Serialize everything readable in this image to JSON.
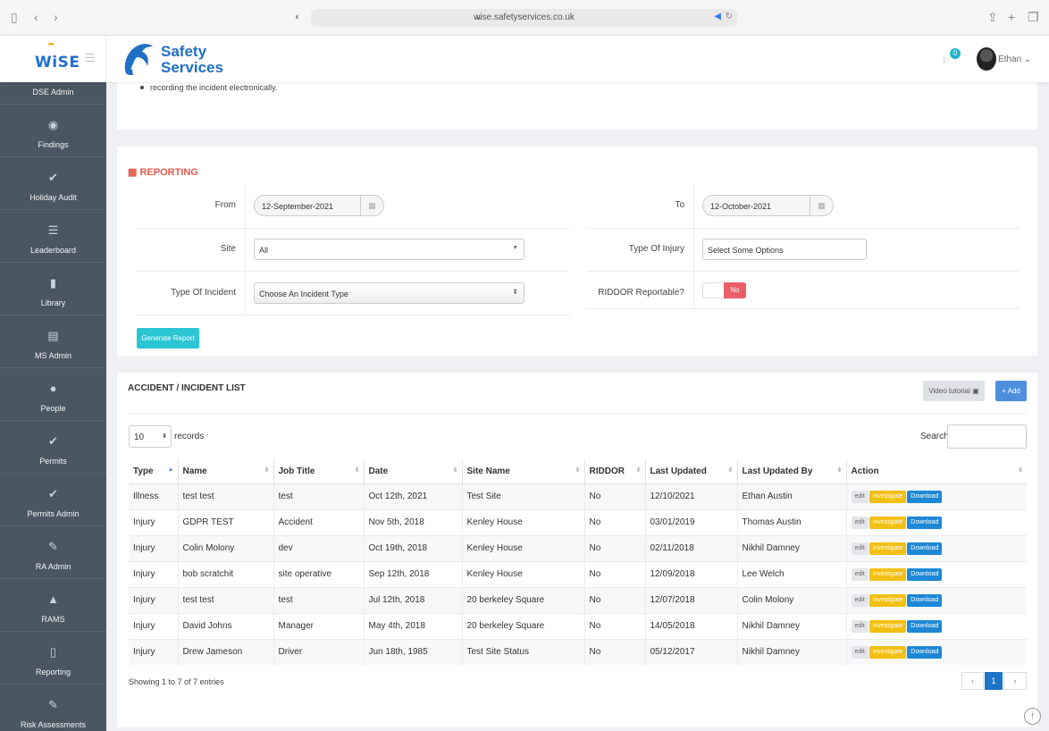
{
  "browser": {
    "url": "wise.safetyservices.co.uk",
    "colors": {
      "bar": "#f6f6f6",
      "url_box": "#e9e9ea"
    }
  },
  "header": {
    "wise_logo": "WiSE",
    "brand_line1": "Safety",
    "brand_line2": "Services",
    "notification_count": "0",
    "user_name": "Ethan ⌄"
  },
  "sidebar": {
    "bg_color": "#4a5662",
    "items": [
      {
        "label": "DSE Admin",
        "icon": "monitor-icon",
        "glyph": ""
      },
      {
        "label": "Findings",
        "icon": "eye-icon",
        "glyph": "◉"
      },
      {
        "label": "Holiday Audit",
        "icon": "check-icon",
        "glyph": "✔"
      },
      {
        "label": "Leaderboard",
        "icon": "list-icon",
        "glyph": "☰"
      },
      {
        "label": "Library",
        "icon": "book-icon",
        "glyph": "▮"
      },
      {
        "label": "MS Admin",
        "icon": "table-icon",
        "glyph": "▤"
      },
      {
        "label": "People",
        "icon": "users-icon",
        "glyph": "●"
      },
      {
        "label": "Permits",
        "icon": "check-icon",
        "glyph": "✔"
      },
      {
        "label": "Permits Admin",
        "icon": "check-icon",
        "glyph": "✔"
      },
      {
        "label": "RA Admin",
        "icon": "pencil-icon",
        "glyph": "✎"
      },
      {
        "label": "RAMS",
        "icon": "warning-icon",
        "glyph": "▲"
      },
      {
        "label": "Reporting",
        "icon": "document-icon",
        "glyph": "▯"
      },
      {
        "label": "Risk Assessments",
        "icon": "pencil-icon",
        "glyph": "✎"
      }
    ]
  },
  "intro": {
    "bullet": "recording the incident electronically."
  },
  "reporting": {
    "title": "REPORTING",
    "title_color": "#e0584b",
    "from_label": "From",
    "from_value": "12-September-2021",
    "to_label": "To",
    "to_value": "12-October-2021",
    "site_label": "Site",
    "site_value": "All",
    "injury_label": "Type Of Injury",
    "injury_placeholder": "Select Some Options",
    "incident_label": "Type Of Incident",
    "incident_value": "Choose An Incident Type",
    "riddor_label": "RIDDOR Reportable?",
    "riddor_value": "No",
    "generate_label": "Generate Report"
  },
  "list": {
    "title": "ACCIDENT / INCIDENT LIST",
    "video_label": "Video tutorial ▣",
    "add_label": "+ Add",
    "records_value": "10",
    "records_label": "records",
    "search_label": "Search:",
    "columns": [
      "Type",
      "Name",
      "Job Title",
      "Date",
      "Site Name",
      "RIDDOR",
      "Last Updated",
      "Last Updated By",
      "Action"
    ],
    "rows": [
      {
        "type": "Illness",
        "name": "test test",
        "job": "test",
        "date": "Oct 12th, 2021",
        "site": "Test Site",
        "riddor": "No",
        "updated": "12/10/2021",
        "by": "Ethan Austin"
      },
      {
        "type": "Injury",
        "name": "GDPR TEST",
        "job": "Accident",
        "date": "Nov 5th, 2018",
        "site": "Kenley House",
        "riddor": "No",
        "updated": "03/01/2019",
        "by": "Thomas Austin"
      },
      {
        "type": "Injury",
        "name": "Colin Molony",
        "job": "dev",
        "date": "Oct 19th, 2018",
        "site": "Kenley House",
        "riddor": "No",
        "updated": "02/11/2018",
        "by": "Nikhil Damney"
      },
      {
        "type": "Injury",
        "name": "bob scratchit",
        "job": "site operative",
        "date": "Sep 12th, 2018",
        "site": "Kenley House",
        "riddor": "No",
        "updated": "12/09/2018",
        "by": "Lee Welch"
      },
      {
        "type": "Injury",
        "name": "test test",
        "job": "test",
        "date": "Jul 12th, 2018",
        "site": "20 berkeley Square",
        "riddor": "No",
        "updated": "12/07/2018",
        "by": "Colin Molony"
      },
      {
        "type": "Injury",
        "name": "David Johns",
        "job": "Manager",
        "date": "May 4th, 2018",
        "site": "20 berkeley Square",
        "riddor": "No",
        "updated": "14/05/2018",
        "by": "Nikhil Damney"
      },
      {
        "type": "Injury",
        "name": "Drew Jameson",
        "job": "Driver",
        "date": "Jun 18th, 1985",
        "site": "Test Site Status",
        "riddor": "No",
        "updated": "05/12/2017",
        "by": "Nikhil Damney"
      }
    ],
    "action_edit": "edit",
    "action_investigate": "investigate",
    "action_download": "Download",
    "showing": "Showing 1 to 7 of 7 entries",
    "pager_prev": "‹",
    "pager_current": "1",
    "pager_next": "›"
  }
}
